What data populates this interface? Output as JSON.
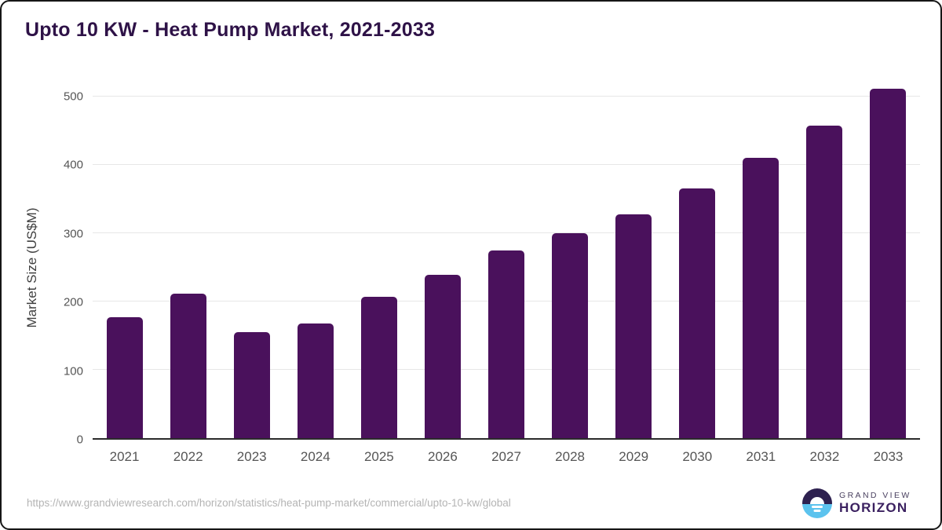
{
  "title": "Upto 10 KW - Heat Pump Market, 2021-2033",
  "chart_data": {
    "type": "bar",
    "title": "Upto 10 KW - Heat Pump Market, 2021-2033",
    "categories": [
      "2021",
      "2022",
      "2023",
      "2024",
      "2025",
      "2026",
      "2027",
      "2028",
      "2029",
      "2030",
      "2031",
      "2032",
      "2033"
    ],
    "values": [
      177,
      211,
      155,
      168,
      207,
      239,
      275,
      300,
      328,
      365,
      410,
      458,
      511
    ],
    "xlabel": "",
    "ylabel": "Market Size (US$M)",
    "ylim": [
      0,
      500
    ],
    "yticks": [
      0,
      100,
      200,
      300,
      400,
      500
    ],
    "grid": true,
    "legend": "none",
    "bar_color": "#4a115c"
  },
  "colors": {
    "bar": "#4a115c",
    "title_text": "#2e1247",
    "axis_text": "#555555",
    "gridline": "#e7e7e7",
    "url_text": "#b4b4b4",
    "logo_dark": "#2e2150",
    "logo_blue": "#5cc3ee"
  },
  "footer": {
    "source_url": "https://www.grandviewresearch.com/horizon/statistics/heat-pump-market/commercial/upto-10-kw/global",
    "logo": {
      "line1": "GRAND VIEW",
      "line2": "HORIZON"
    }
  }
}
